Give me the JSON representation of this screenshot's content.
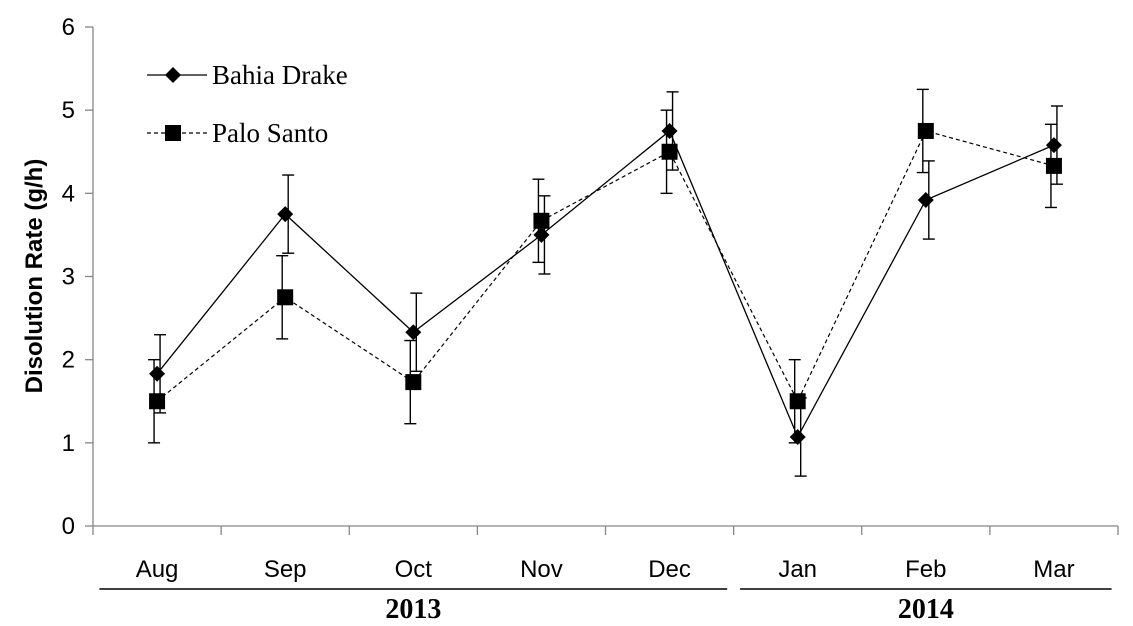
{
  "chart_data": {
    "type": "line",
    "ylabel": "Disolution Rate  (g/h)",
    "ylim": [
      0,
      6
    ],
    "yticks": [
      0,
      1,
      2,
      3,
      4,
      5,
      6
    ],
    "categories": [
      "Aug",
      "Sep",
      "Oct",
      "Nov",
      "Dec",
      "Jan",
      "Feb",
      "Mar"
    ],
    "groups": [
      {
        "label": "2013",
        "start": 0,
        "end": 4
      },
      {
        "label": "2014",
        "start": 5,
        "end": 7
      }
    ],
    "grid": false,
    "legend": "top-left",
    "series": [
      {
        "name": "Bahia Drake",
        "marker": "diamond",
        "line": "solid",
        "values": [
          1.83,
          3.75,
          2.33,
          3.5,
          4.75,
          1.07,
          3.92,
          4.58
        ],
        "errors": [
          0.47,
          0.47,
          0.47,
          0.47,
          0.47,
          0.47,
          0.47,
          0.47
        ]
      },
      {
        "name": "Palo Santo",
        "marker": "square",
        "line": "dashed",
        "values": [
          1.5,
          2.75,
          1.73,
          3.67,
          4.5,
          1.5,
          4.75,
          4.33
        ],
        "errors": [
          0.5,
          0.5,
          0.5,
          0.5,
          0.5,
          0.5,
          0.5,
          0.5
        ]
      }
    ]
  }
}
